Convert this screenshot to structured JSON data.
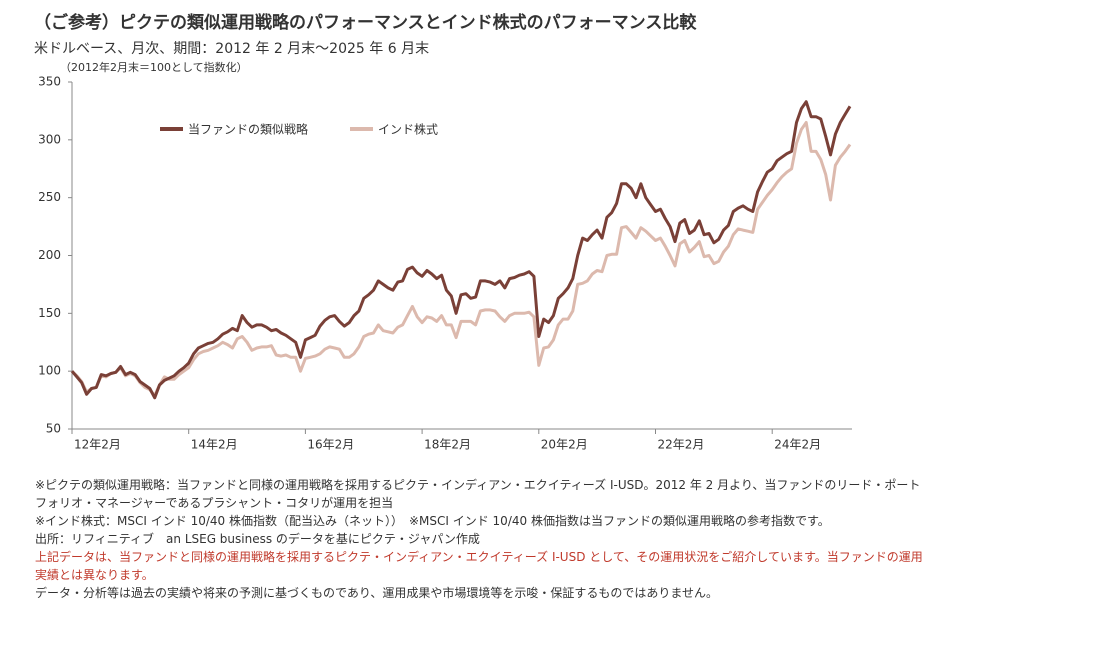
{
  "title": "（ご参考）ピクテの類似運用戦略のパフォーマンスとインド株式のパフォーマンス比較",
  "subtitle": "米ドルベース、月次、期間：2012 年 2 月末～2025 年 6 月末",
  "chart_data": {
    "type": "line",
    "axis_note": "（2012年2月末＝100として指数化）",
    "categories": [
      "12年2月",
      null,
      null,
      null,
      null,
      null,
      null,
      null,
      null,
      null,
      null,
      null,
      null,
      null,
      null,
      null,
      null,
      null,
      null,
      null,
      null,
      null,
      null,
      null,
      "14年2月",
      null,
      null,
      null,
      null,
      null,
      null,
      null,
      null,
      null,
      null,
      null,
      null,
      null,
      null,
      null,
      null,
      null,
      null,
      null,
      null,
      null,
      null,
      null,
      "16年2月",
      null,
      null,
      null,
      null,
      null,
      null,
      null,
      null,
      null,
      null,
      null,
      null,
      null,
      null,
      null,
      null,
      null,
      null,
      null,
      null,
      null,
      null,
      null,
      "18年2月",
      null,
      null,
      null,
      null,
      null,
      null,
      null,
      null,
      null,
      null,
      null,
      null,
      null,
      null,
      null,
      null,
      null,
      null,
      null,
      null,
      null,
      null,
      null,
      "20年2月",
      null,
      null,
      null,
      null,
      null,
      null,
      null,
      null,
      null,
      null,
      null,
      null,
      null,
      null,
      null,
      null,
      null,
      null,
      null,
      null,
      null,
      null,
      null,
      "22年2月",
      null,
      null,
      null,
      null,
      null,
      null,
      null,
      null,
      null,
      null,
      null,
      null,
      null,
      null,
      null,
      null,
      null,
      null,
      null,
      null,
      null,
      null,
      null,
      "24年2月",
      null,
      null,
      null,
      null,
      null,
      null,
      null,
      null,
      null,
      null,
      null,
      null,
      null,
      null,
      null,
      null
    ],
    "series": [
      {
        "name": "当ファンドの類似戦略",
        "color": "#7a4037",
        "values": [
          100,
          95,
          90,
          80,
          85,
          86,
          97,
          96,
          98,
          99,
          104,
          97,
          99,
          97,
          91,
          88,
          85,
          77,
          88,
          92,
          94,
          96,
          100,
          103,
          107,
          115,
          120,
          122,
          124,
          125,
          128,
          132,
          134,
          137,
          135,
          148,
          142,
          138,
          140,
          140,
          138,
          135,
          136,
          133,
          131,
          128,
          125,
          112,
          127,
          129,
          131,
          139,
          144,
          147,
          148,
          143,
          139,
          142,
          148,
          152,
          163,
          166,
          170,
          178,
          175,
          172,
          170,
          177,
          178,
          188,
          190,
          185,
          182,
          187,
          184,
          180,
          183,
          170,
          165,
          150,
          166,
          167,
          163,
          164,
          178,
          178,
          177,
          175,
          178,
          172,
          180,
          181,
          183,
          184,
          186,
          182,
          130,
          145,
          142,
          148,
          163,
          167,
          172,
          180,
          200,
          215,
          213,
          218,
          222,
          215,
          233,
          237,
          245,
          262,
          262,
          258,
          250,
          262,
          250,
          244,
          238,
          240,
          232,
          225,
          212,
          228,
          231,
          219,
          222,
          230,
          218,
          219,
          211,
          214,
          222,
          226,
          238,
          241,
          243,
          240,
          238,
          255,
          264,
          272,
          275,
          282,
          285,
          288,
          290,
          315,
          327,
          333,
          320,
          320,
          318,
          303,
          287,
          305,
          315,
          322,
          329
        ]
      },
      {
        "name": "インド株式",
        "color": "#dcb9ad",
        "values": [
          100,
          96,
          91,
          82,
          85,
          86,
          96,
          95,
          98,
          99,
          103,
          96,
          98,
          96,
          90,
          86,
          84,
          79,
          88,
          95,
          93,
          93,
          97,
          100,
          103,
          110,
          115,
          117,
          118,
          120,
          122,
          125,
          123,
          120,
          128,
          130,
          125,
          118,
          120,
          121,
          121,
          122,
          114,
          113,
          114,
          112,
          112,
          100,
          111,
          112,
          113,
          115,
          119,
          121,
          120,
          119,
          112,
          112,
          115,
          121,
          130,
          132,
          133,
          140,
          135,
          134,
          133,
          138,
          140,
          148,
          156,
          147,
          142,
          147,
          146,
          143,
          148,
          140,
          140,
          129,
          143,
          143,
          143,
          140,
          152,
          153,
          153,
          152,
          147,
          143,
          148,
          150,
          150,
          150,
          151,
          147,
          105,
          120,
          121,
          127,
          140,
          145,
          145,
          152,
          175,
          176,
          178,
          184,
          187,
          186,
          200,
          201,
          201,
          224,
          225,
          220,
          215,
          224,
          221,
          217,
          213,
          215,
          208,
          200,
          191,
          210,
          213,
          203,
          207,
          212,
          199,
          200,
          193,
          195,
          203,
          208,
          218,
          223,
          222,
          221,
          220,
          240,
          246,
          252,
          257,
          263,
          268,
          272,
          275,
          297,
          309,
          315,
          290,
          290,
          283,
          270,
          248,
          278,
          285,
          290,
          296
        ]
      }
    ],
    "ylim": [
      50,
      350
    ],
    "yticks": [
      50,
      100,
      150,
      200,
      250,
      300,
      350
    ],
    "grid": false
  },
  "notes": [
    {
      "text": "※ピクテの類似運用戦略：当ファンドと同様の運用戦略を採用するピクテ・インディアン・エクイティーズ I-USD。2012 年 2 月より、当ファンドのリード・ポートフォリオ・マネージャーであるプラシャント・コタリが運用を担当",
      "color": "#333333"
    },
    {
      "text": "※インド株式：MSCI インド 10/40 株価指数（配当込み（ネット））　※MSCI インド 10/40 株価指数は当ファンドの類似運用戦略の参考指数です。",
      "color": "#333333"
    },
    {
      "text": "出所：リフィニティブ　an LSEG business のデータを基にピクテ・ジャパン作成",
      "color": "#333333"
    },
    {
      "text": "上記データは、当ファンドと同様の運用戦略を採用するピクテ・インディアン・エクイティーズ I-USD として、その運用状況をご紹介しています。当ファンドの運用実績とは異なります。",
      "color": "#c0392b"
    },
    {
      "text": "データ・分析等は過去の実績や将来の予測に基づくものであり、運用成果や市場環境等を示唆・保証するものではありません。",
      "color": "#333333"
    }
  ]
}
